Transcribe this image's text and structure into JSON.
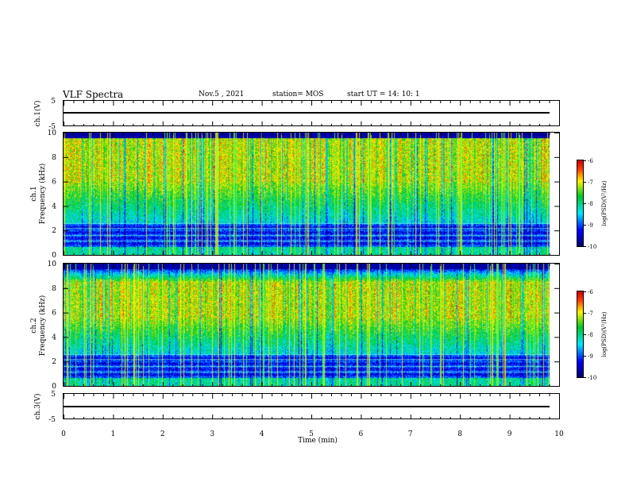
{
  "header": {
    "title": "VLF Spectra",
    "date": "Nov.5 , 2021",
    "station": "station= MOS",
    "start_ut": "start UT = 14: 10: 1"
  },
  "panels": {
    "ch1_wave_label": "ch.1(V)",
    "ch1_spec_label1": "ch.1",
    "ch1_spec_label2": "Frequency (kHz)",
    "ch2_spec_label1": "ch.2",
    "ch2_spec_label2": "Frequency (kHz)",
    "ch3_wave_label": "ch.3(V)",
    "colorbar_label": "log(PSD)(V²/Hz)"
  },
  "chart_data": [
    {
      "type": "line",
      "panel": "ch.1 waveform",
      "ylabel": "ch.1(V)",
      "ylim": [
        -5,
        5
      ],
      "yticks": [
        "5",
        "-5"
      ],
      "xlim": [
        0,
        10
      ],
      "series": [
        {
          "values_note_level": 0
        }
      ]
    },
    {
      "type": "heatmap",
      "panel": "ch.1 spectrogram",
      "ylabel": "ch.1 Frequency (kHz)",
      "ylim": [
        0,
        10
      ],
      "yticks": [
        "0",
        "2",
        "4",
        "6",
        "8",
        "10"
      ],
      "xlim": [
        0,
        10
      ],
      "color_range": [
        -10,
        -6
      ],
      "colorbar_ticks": [
        "-6",
        "-7",
        "-8",
        "-9",
        "-10"
      ],
      "colorbar_label": "log(PSD)(V²/Hz)",
      "peak_band_khz": [
        6,
        9.5
      ]
    },
    {
      "type": "heatmap",
      "panel": "ch.2 spectrogram",
      "ylabel": "ch.2 Frequency (kHz)",
      "ylim": [
        0,
        10
      ],
      "yticks": [
        "0",
        "2",
        "4",
        "6",
        "8",
        "10"
      ],
      "xlim": [
        0,
        10
      ],
      "color_range": [
        -10,
        -6
      ],
      "colorbar_ticks": [
        "-6",
        "-7",
        "-8",
        "-9",
        "-10"
      ],
      "colorbar_label": "log(PSD)(V²/Hz)",
      "peak_band_khz": [
        5.5,
        8.5
      ]
    },
    {
      "type": "line",
      "panel": "ch.3 waveform",
      "ylabel": "ch.3(V)",
      "ylim": [
        -5,
        5
      ],
      "yticks": [
        "5",
        "-5"
      ],
      "xlim": [
        0,
        10
      ],
      "xlabel": "Time (min)",
      "xticks": [
        "0",
        "1",
        "2",
        "3",
        "4",
        "5",
        "6",
        "7",
        "8",
        "9",
        "10"
      ]
    }
  ]
}
